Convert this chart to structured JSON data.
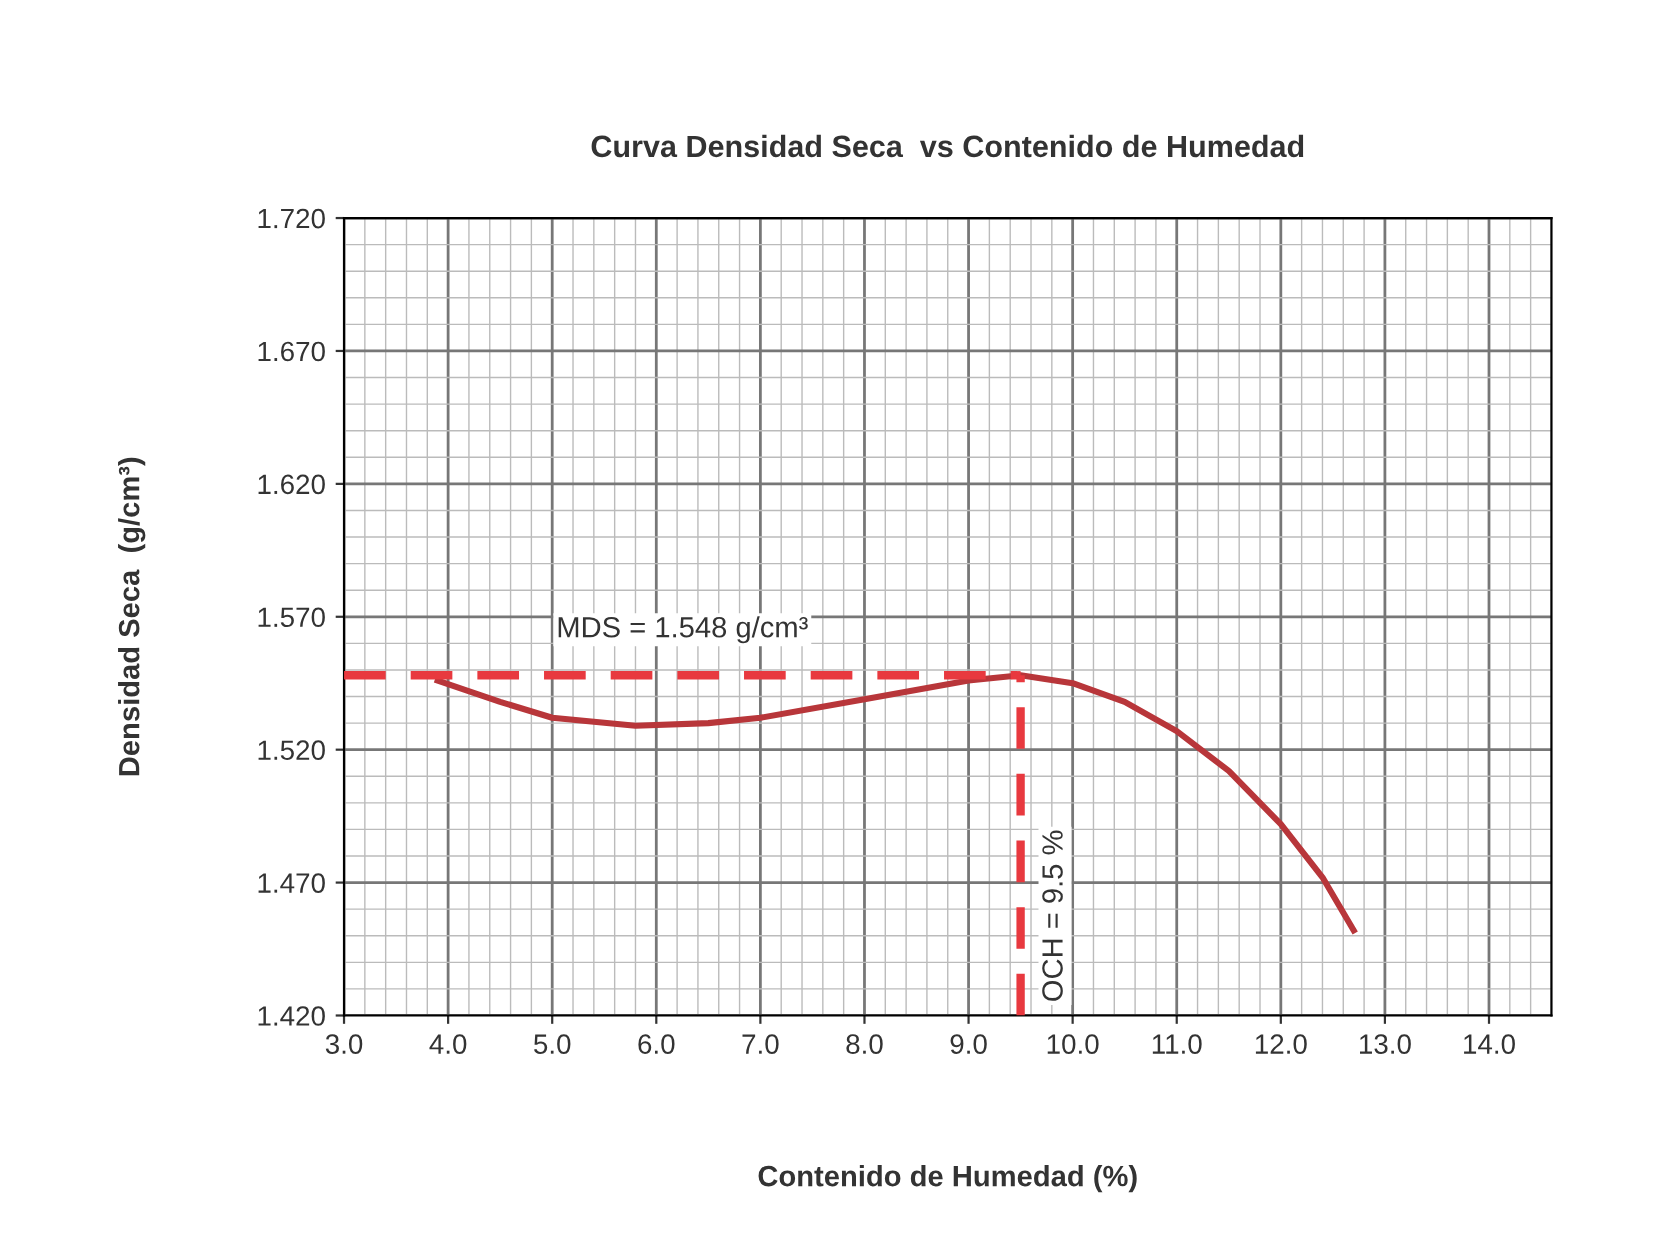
{
  "chart_data": {
    "type": "line",
    "title": "Curva Densidad Seca  vs Contenido de Humedad",
    "xlabel": "Contenido de Humedad (%)",
    "ylabel": "Densidad Seca  (g/cm³)",
    "x": [
      3.9,
      4.5,
      5.0,
      5.8,
      6.5,
      7.0,
      8.0,
      9.0,
      9.5,
      10.0,
      10.5,
      11.0,
      11.5,
      12.0,
      12.4,
      12.7
    ],
    "series": [
      {
        "color": "#b8363a",
        "values": [
          1.546,
          1.538,
          1.532,
          1.529,
          1.53,
          1.532,
          1.539,
          1.546,
          1.548,
          1.545,
          1.538,
          1.527,
          1.512,
          1.492,
          1.472,
          1.452
        ]
      }
    ],
    "xlim": [
      3.0,
      14.6
    ],
    "xticks": [
      {
        "value": 3,
        "label": "3.0"
      },
      {
        "value": 4,
        "label": "4.0"
      },
      {
        "value": 5,
        "label": "5.0"
      },
      {
        "value": 6,
        "label": "6.0"
      },
      {
        "value": 7,
        "label": "7.0"
      },
      {
        "value": 8,
        "label": "8.0"
      },
      {
        "value": 9,
        "label": "9.0"
      },
      {
        "value": 10,
        "label": "10.0"
      },
      {
        "value": 11,
        "label": "11.0"
      },
      {
        "value": 12,
        "label": "12.0"
      },
      {
        "value": 13,
        "label": "13.0"
      },
      {
        "value": 14,
        "label": "14.0"
      }
    ],
    "ylim": [
      1.42,
      1.72
    ],
    "yticks": [
      {
        "value": 1.42,
        "label": "1.420"
      },
      {
        "value": 1.47,
        "label": "1.470"
      },
      {
        "value": 1.52,
        "label": "1.520"
      },
      {
        "value": 1.57,
        "label": "1.570"
      },
      {
        "value": 1.62,
        "label": "1.620"
      },
      {
        "value": 1.67,
        "label": "1.670"
      },
      {
        "value": 1.72,
        "label": "1.720"
      }
    ],
    "grid": true,
    "marker": "none",
    "line_style": "solid",
    "ref_lines": [
      {
        "axis": "y",
        "value": 1.548,
        "label": "MDS = 1.548 g/cm³",
        "color": "#e8393f",
        "line_style": "dashed"
      },
      {
        "axis": "x",
        "value": 9.5,
        "label": "OCH = 9.5 %",
        "color": "#e8393f",
        "line_style": "dashed"
      }
    ]
  }
}
